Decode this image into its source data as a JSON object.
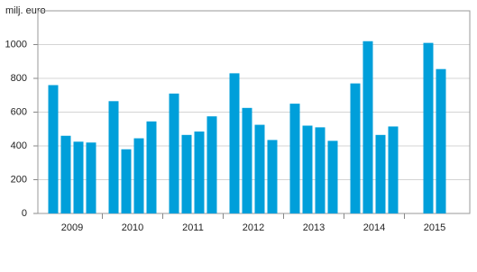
{
  "chart_data": {
    "type": "bar",
    "y_label": "milj. euro",
    "color": "#009fda",
    "groups": [
      {
        "label": "2009",
        "values": [
          760,
          460,
          425,
          420
        ]
      },
      {
        "label": "2010",
        "values": [
          665,
          380,
          445,
          545
        ]
      },
      {
        "label": "2011",
        "values": [
          710,
          465,
          485,
          575
        ]
      },
      {
        "label": "2012",
        "values": [
          830,
          625,
          525,
          435
        ]
      },
      {
        "label": "2013",
        "values": [
          650,
          520,
          510,
          430
        ]
      },
      {
        "label": "2014",
        "values": [
          770,
          1020,
          465,
          515
        ]
      },
      {
        "label": "2015",
        "values": [
          1010,
          855
        ]
      }
    ],
    "ylim": [
      0,
      1200
    ],
    "yticks": [
      0,
      200,
      400,
      600,
      800,
      1000
    ],
    "grid": true
  }
}
